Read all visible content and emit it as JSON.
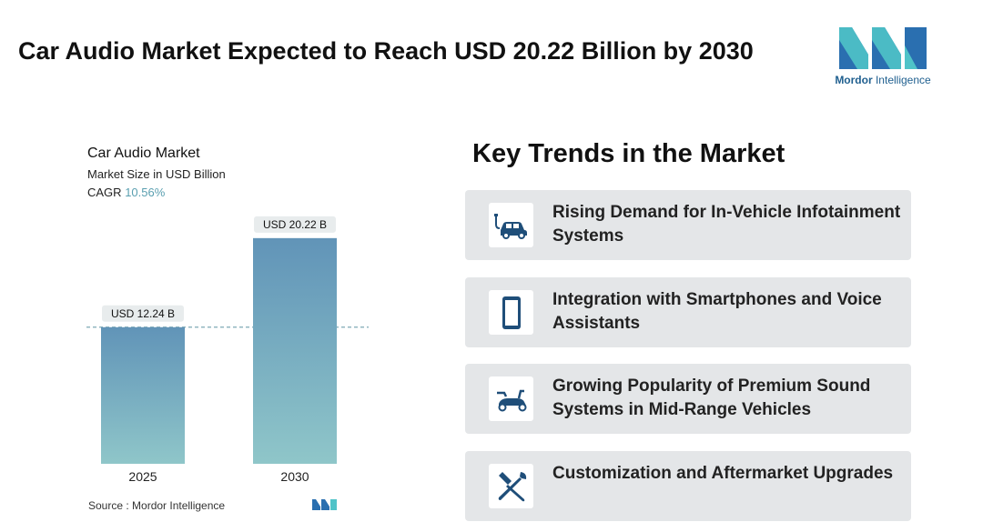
{
  "header": {
    "title": "Car Audio Market Expected to Reach USD 20.22 Billion by 2030"
  },
  "logo": {
    "name_bold": "Mordor",
    "name_rest": " Intelligence",
    "colors": {
      "teal": "#4fc3c8",
      "blue": "#2a6fb0"
    }
  },
  "chart_data": {
    "type": "bar",
    "title": "Car Audio Market",
    "subtitle": "Market Size in USD Billion",
    "cagr_label": "CAGR",
    "cagr_value": "10.56%",
    "categories": [
      "2025",
      "2030"
    ],
    "values": [
      12.24,
      20.22
    ],
    "data_labels": [
      "USD 12.24 B",
      "USD 20.22 B"
    ],
    "xlabel": "",
    "ylabel": "",
    "ylim": [
      0,
      22
    ],
    "grid": false,
    "reference_line": 12.24,
    "colors": {
      "bar_top": "#6194b8",
      "bar_bottom": "#8fc6c9",
      "label_bg": "#e8eced",
      "ref_line": "#7fa9b5"
    }
  },
  "source": {
    "text": "Source :  Mordor Intelligence"
  },
  "trends": {
    "title": "Key Trends in the Market",
    "items": [
      {
        "label": "Rising Demand for In-Vehicle Infotainment Systems",
        "icon": "electric-car-icon"
      },
      {
        "label": "Integration with Smartphones and Voice Assistants",
        "icon": "smartphone-icon"
      },
      {
        "label": "Growing Popularity of Premium Sound Systems in Mid-Range Vehicles",
        "icon": "scooter-icon"
      },
      {
        "label": "Customization and Aftermarket Upgrades",
        "icon": "wrench-screwdriver-icon"
      }
    ],
    "colors": {
      "card_bg": "#e4e6e8",
      "icon": "#1f4e79"
    }
  }
}
